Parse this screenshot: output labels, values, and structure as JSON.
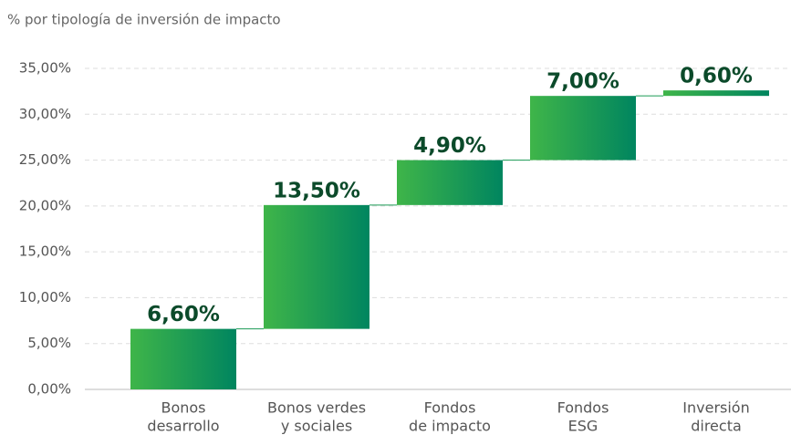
{
  "chart_data": {
    "type": "waterfall",
    "title": "% por tipología de inversión de impacto",
    "categories": [
      [
        "Bonos",
        "desarrollo"
      ],
      [
        "Bonos verdes",
        "y sociales"
      ],
      [
        "Fondos",
        "de impacto"
      ],
      [
        "Fondos",
        "ESG"
      ],
      [
        "Inversión",
        "directa"
      ]
    ],
    "values": [
      6.6,
      13.5,
      4.9,
      7.0,
      0.6
    ],
    "value_labels": [
      "6,60%",
      "13,50%",
      "4,90%",
      "7,00%",
      "0,60%"
    ],
    "color": [
      "#3fb549",
      "#00855f"
    ],
    "ylim": [
      0,
      35
    ],
    "yticks": [
      {
        "value": 0,
        "label": "0,00%"
      },
      {
        "value": 5,
        "label": "5,00%"
      },
      {
        "value": 10,
        "label": "10,00%"
      },
      {
        "value": 15,
        "label": "15,00%"
      },
      {
        "value": 20,
        "label": "20,00%"
      },
      {
        "value": 25,
        "label": "25,00%"
      },
      {
        "value": 30,
        "label": "30,00%"
      },
      {
        "value": 35,
        "label": "35,00%"
      }
    ],
    "grid": true
  }
}
